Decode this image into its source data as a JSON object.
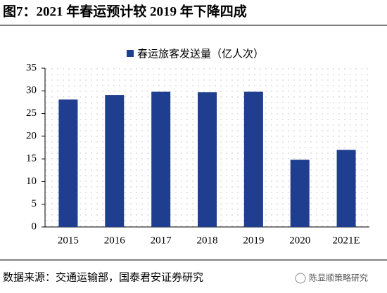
{
  "chart_data": {
    "type": "bar",
    "title": "图7：2021 年春运预计较 2019 年下降四成",
    "series_name": "春运旅客发送量（亿人次）",
    "categories": [
      "2015",
      "2016",
      "2017",
      "2018",
      "2019",
      "2020",
      "2021E"
    ],
    "values": [
      28.1,
      29.1,
      29.8,
      29.7,
      29.8,
      14.8,
      17.0
    ],
    "color": "#203e8f",
    "ylim": [
      0,
      35
    ],
    "yticks": [
      0,
      5,
      10,
      15,
      20,
      25,
      30,
      35
    ],
    "legend": "top",
    "source": "数据来源：交通运输部，国泰君安证券研究",
    "watermark": "陈显顺策略研究"
  }
}
